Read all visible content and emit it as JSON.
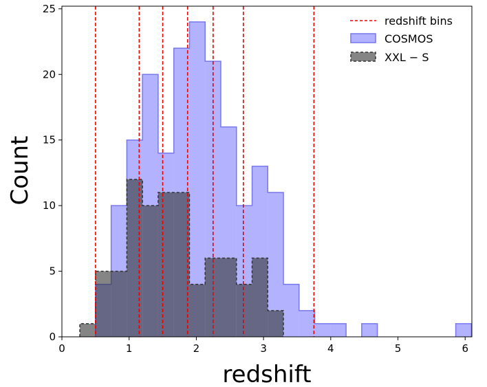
{
  "chart_data": {
    "type": "histogram",
    "xlabel": "redshift",
    "ylabel": "Count",
    "xlim": [
      0,
      6.1
    ],
    "ylim": [
      0,
      25.2
    ],
    "xticks": [
      0,
      1,
      2,
      3,
      4,
      5,
      6
    ],
    "yticks": [
      0,
      5,
      10,
      15,
      20,
      25
    ],
    "bin_width": 0.233,
    "legend_position": "top-right",
    "series": [
      {
        "name": "COSMOS",
        "color": "#6666ff",
        "alpha": 0.5,
        "edge": "solid",
        "bin_starts": [
          0.5,
          0.733,
          0.966,
          1.199,
          1.432,
          1.665,
          1.898,
          2.131,
          2.364,
          2.597,
          2.83,
          3.063,
          3.296,
          3.529,
          3.762,
          3.995,
          4.461,
          5.86
        ],
        "counts": [
          4,
          10,
          15,
          20,
          14,
          22,
          24,
          21,
          16,
          10,
          13,
          11,
          4,
          2,
          1,
          1,
          1,
          1
        ]
      },
      {
        "name": "XXL − S",
        "color": "#333333",
        "alpha": 0.6,
        "edge": "dashed",
        "bin_starts": [
          0.267,
          0.5,
          0.733,
          0.966,
          1.199,
          1.432,
          1.665,
          1.898,
          2.131,
          2.364,
          2.597,
          2.83,
          3.063
        ],
        "counts": [
          1,
          5,
          5,
          12,
          10,
          11,
          11,
          4,
          6,
          6,
          4,
          6,
          2
        ]
      }
    ],
    "redshift_bins": {
      "name": "redshift bins",
      "color": "#ee0000",
      "style": "dashed",
      "x": [
        0.5,
        1.15,
        1.5,
        1.87,
        2.25,
        2.7,
        3.75
      ]
    }
  }
}
